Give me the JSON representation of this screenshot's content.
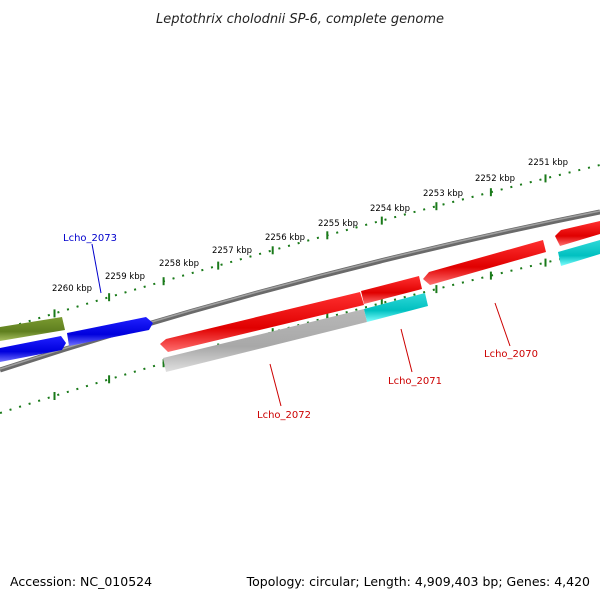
{
  "title": "Leptothrix cholodnii SP-6, complete genome",
  "footer": {
    "accession": "Accession: NC_010524",
    "summary": "Topology: circular; Length: 4,909,403 bp; Genes: 4,420"
  },
  "colors": {
    "backbone": "#808080",
    "tick": "#1a7a1a",
    "forward": "#ff0000",
    "reverse": "#0000ff",
    "rna": "#00e0e0",
    "pseudo": "#c8c8c8",
    "olive": "#6b8e23"
  },
  "ticks_kbp": [
    "2251 kbp",
    "2252 kbp",
    "2253 kbp",
    "2254 kbp",
    "2255 kbp",
    "2256 kbp",
    "2257 kbp",
    "2258 kbp",
    "2259 kbp",
    "2260 kbp"
  ],
  "gene_labels": [
    {
      "id": "lcho-2073",
      "text": "Lcho_2073",
      "color": "#0000cc"
    },
    {
      "id": "lcho-2072",
      "text": "Lcho_2072",
      "color": "#cc0000"
    },
    {
      "id": "lcho-2071",
      "text": "Lcho_2071",
      "color": "#cc0000"
    },
    {
      "id": "lcho-2070",
      "text": "Lcho_2070",
      "color": "#cc0000"
    }
  ]
}
